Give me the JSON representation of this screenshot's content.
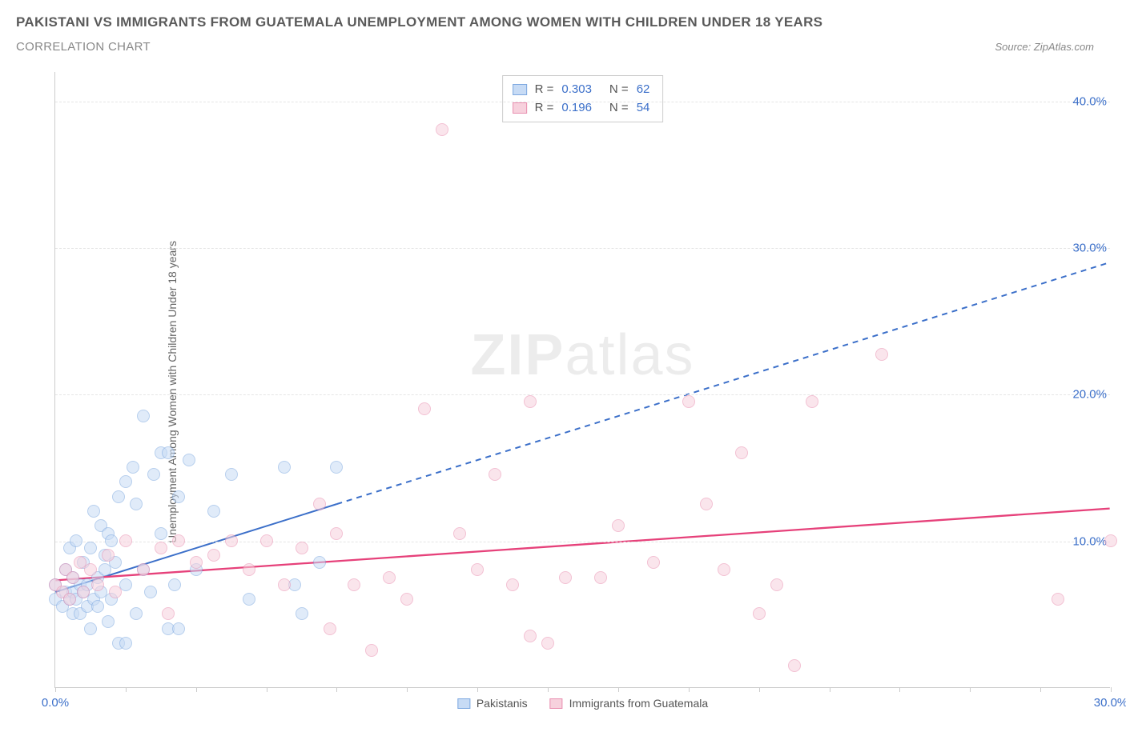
{
  "title": "PAKISTANI VS IMMIGRANTS FROM GUATEMALA UNEMPLOYMENT AMONG WOMEN WITH CHILDREN UNDER 18 YEARS",
  "subtitle": "CORRELATION CHART",
  "source_label": "Source: ZipAtlas.com",
  "watermark": {
    "bold": "ZIP",
    "light": "atlas"
  },
  "chart": {
    "type": "scatter",
    "y_axis_label": "Unemployment Among Women with Children Under 18 years",
    "xlim": [
      0,
      30
    ],
    "ylim": [
      0,
      42
    ],
    "x_ticks": [
      0,
      2,
      4,
      6,
      8,
      10,
      12,
      14,
      16,
      18,
      20,
      22,
      24,
      26,
      28,
      30
    ],
    "x_tick_labels": {
      "0": "0.0%",
      "30": "30.0%"
    },
    "y_ticks": [
      10,
      20,
      30,
      40
    ],
    "y_tick_labels": {
      "10": "10.0%",
      "20": "20.0%",
      "30": "30.0%",
      "40": "40.0%"
    },
    "grid_color": "#e5e5e5",
    "axis_color": "#cccccc",
    "tick_label_color": "#3b6fc9",
    "background": "#ffffff",
    "marker_radius": 8,
    "marker_stroke_width": 1.2,
    "legend_bottom": [
      {
        "label": "Pakistanis",
        "fill": "#c7dbf5",
        "stroke": "#7da8e0"
      },
      {
        "label": "Immigrants from Guatemala",
        "fill": "#f7d1dd",
        "stroke": "#e98fb0"
      }
    ],
    "stats_box": [
      {
        "fill": "#c7dbf5",
        "stroke": "#7da8e0",
        "R": "0.303",
        "N": "62"
      },
      {
        "fill": "#f7d1dd",
        "stroke": "#e98fb0",
        "R": "0.196",
        "N": "54"
      }
    ],
    "series": [
      {
        "name": "Pakistanis",
        "fill": "#c7dbf5",
        "stroke": "#7da8e0",
        "fill_opacity": 0.55,
        "trend": {
          "x1": 0,
          "y1": 6.5,
          "x2": 30,
          "y2": 29,
          "solid_until_x": 8,
          "color": "#3b6fc9",
          "width": 2,
          "dash": "7 6"
        },
        "points": [
          [
            0.0,
            6.0
          ],
          [
            0.0,
            7.0
          ],
          [
            0.2,
            5.5
          ],
          [
            0.3,
            8.0
          ],
          [
            0.3,
            6.5
          ],
          [
            0.4,
            6.0
          ],
          [
            0.4,
            9.5
          ],
          [
            0.5,
            5.0
          ],
          [
            0.5,
            7.5
          ],
          [
            0.5,
            6.5
          ],
          [
            0.6,
            10.0
          ],
          [
            0.6,
            6.0
          ],
          [
            0.7,
            7.0
          ],
          [
            0.7,
            5.0
          ],
          [
            0.8,
            8.5
          ],
          [
            0.8,
            6.5
          ],
          [
            0.9,
            7.0
          ],
          [
            0.9,
            5.5
          ],
          [
            1.0,
            9.5
          ],
          [
            1.0,
            4.0
          ],
          [
            1.1,
            6.0
          ],
          [
            1.1,
            12.0
          ],
          [
            1.2,
            7.5
          ],
          [
            1.2,
            5.5
          ],
          [
            1.3,
            11.0
          ],
          [
            1.3,
            6.5
          ],
          [
            1.4,
            8.0
          ],
          [
            1.4,
            9.0
          ],
          [
            1.5,
            10.5
          ],
          [
            1.5,
            4.5
          ],
          [
            1.6,
            10.0
          ],
          [
            1.6,
            6.0
          ],
          [
            1.7,
            8.5
          ],
          [
            1.8,
            13.0
          ],
          [
            1.8,
            3.0
          ],
          [
            2.0,
            14.0
          ],
          [
            2.0,
            7.0
          ],
          [
            2.0,
            3.0
          ],
          [
            2.2,
            15.0
          ],
          [
            2.3,
            12.5
          ],
          [
            2.3,
            5.0
          ],
          [
            2.5,
            18.5
          ],
          [
            2.5,
            8.0
          ],
          [
            2.7,
            6.5
          ],
          [
            2.8,
            14.5
          ],
          [
            3.0,
            16.0
          ],
          [
            3.0,
            10.5
          ],
          [
            3.2,
            4.0
          ],
          [
            3.2,
            16.0
          ],
          [
            3.4,
            7.0
          ],
          [
            3.5,
            13.0
          ],
          [
            3.5,
            4.0
          ],
          [
            3.8,
            15.5
          ],
          [
            4.0,
            8.0
          ],
          [
            4.5,
            12.0
          ],
          [
            5.0,
            14.5
          ],
          [
            5.5,
            6.0
          ],
          [
            6.5,
            15.0
          ],
          [
            6.8,
            7.0
          ],
          [
            7.0,
            5.0
          ],
          [
            7.5,
            8.5
          ],
          [
            8.0,
            15.0
          ]
        ]
      },
      {
        "name": "Immigrants from Guatemala",
        "fill": "#f7d1dd",
        "stroke": "#e98fb0",
        "fill_opacity": 0.55,
        "trend": {
          "x1": 0,
          "y1": 7.3,
          "x2": 30,
          "y2": 12.2,
          "solid_until_x": 30,
          "color": "#e6417a",
          "width": 2.3,
          "dash": null
        },
        "points": [
          [
            0.0,
            7.0
          ],
          [
            0.2,
            6.5
          ],
          [
            0.3,
            8.0
          ],
          [
            0.4,
            6.0
          ],
          [
            0.5,
            7.5
          ],
          [
            0.7,
            8.5
          ],
          [
            0.8,
            6.5
          ],
          [
            1.0,
            8.0
          ],
          [
            1.2,
            7.0
          ],
          [
            1.5,
            9.0
          ],
          [
            1.7,
            6.5
          ],
          [
            2.0,
            10.0
          ],
          [
            2.5,
            8.0
          ],
          [
            3.0,
            9.5
          ],
          [
            3.2,
            5.0
          ],
          [
            3.5,
            10.0
          ],
          [
            4.0,
            8.5
          ],
          [
            4.5,
            9.0
          ],
          [
            5.0,
            10.0
          ],
          [
            5.5,
            8.0
          ],
          [
            6.0,
            10.0
          ],
          [
            6.5,
            7.0
          ],
          [
            7.0,
            9.5
          ],
          [
            7.5,
            12.5
          ],
          [
            8.0,
            10.5
          ],
          [
            8.5,
            7.0
          ],
          [
            9.0,
            2.5
          ],
          [
            9.5,
            7.5
          ],
          [
            10.0,
            6.0
          ],
          [
            10.5,
            19.0
          ],
          [
            11.0,
            38.0
          ],
          [
            11.5,
            10.5
          ],
          [
            12.0,
            8.0
          ],
          [
            12.5,
            14.5
          ],
          [
            13.0,
            7.0
          ],
          [
            13.5,
            3.5
          ],
          [
            13.5,
            19.5
          ],
          [
            14.0,
            3.0
          ],
          [
            14.5,
            7.5
          ],
          [
            15.5,
            7.5
          ],
          [
            16.0,
            11.0
          ],
          [
            17.0,
            8.5
          ],
          [
            18.0,
            19.5
          ],
          [
            18.5,
            12.5
          ],
          [
            19.0,
            8.0
          ],
          [
            19.5,
            16.0
          ],
          [
            20.0,
            5.0
          ],
          [
            20.5,
            7.0
          ],
          [
            21.0,
            1.5
          ],
          [
            21.5,
            19.5
          ],
          [
            23.5,
            22.7
          ],
          [
            28.5,
            6.0
          ],
          [
            30.0,
            10.0
          ],
          [
            7.8,
            4.0
          ]
        ]
      }
    ]
  }
}
